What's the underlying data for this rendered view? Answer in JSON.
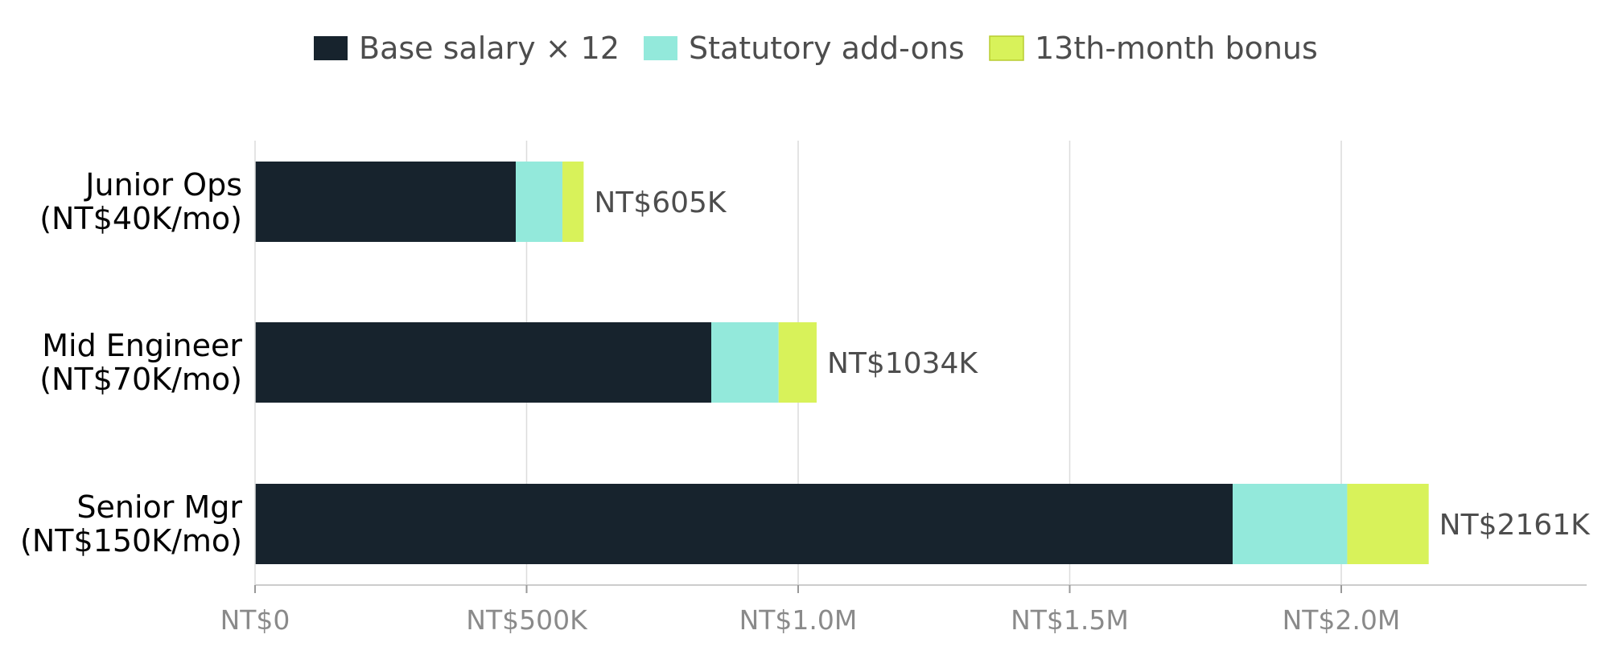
{
  "chart_data": {
    "type": "bar",
    "orientation": "horizontal",
    "stacked": true,
    "title": "",
    "xlabel": "",
    "ylabel": "",
    "categories": [
      [
        "Junior Ops",
        "(NT$40K/mo)"
      ],
      [
        "Mid Engineer",
        "(NT$70K/mo)"
      ],
      [
        "Senior Mgr",
        "(NT$150K/mo)"
      ]
    ],
    "series": [
      {
        "name": "Base salary × 12",
        "color": "#17232d",
        "values": [
          480000,
          840000,
          1800000
        ]
      },
      {
        "name": "Statutory add-ons",
        "color": "#93e9db",
        "values": [
          86000,
          124000,
          211000
        ]
      },
      {
        "name": "13th-month bonus",
        "color": "#d8f25a",
        "values": [
          39000,
          70000,
          150000
        ]
      }
    ],
    "totals": [
      "NT$605K",
      "NT$1034K",
      "NT$2161K"
    ],
    "xlim": [
      0,
      2450000
    ],
    "xticks": [
      {
        "value": 0,
        "label": "NT$0"
      },
      {
        "value": 500000,
        "label": "NT$500K"
      },
      {
        "value": 1000000,
        "label": "NT$1.0M"
      },
      {
        "value": 1500000,
        "label": "NT$1.5M"
      },
      {
        "value": 2000000,
        "label": "NT$2.0M"
      }
    ],
    "grid": "vertical",
    "legend": "top-center"
  }
}
